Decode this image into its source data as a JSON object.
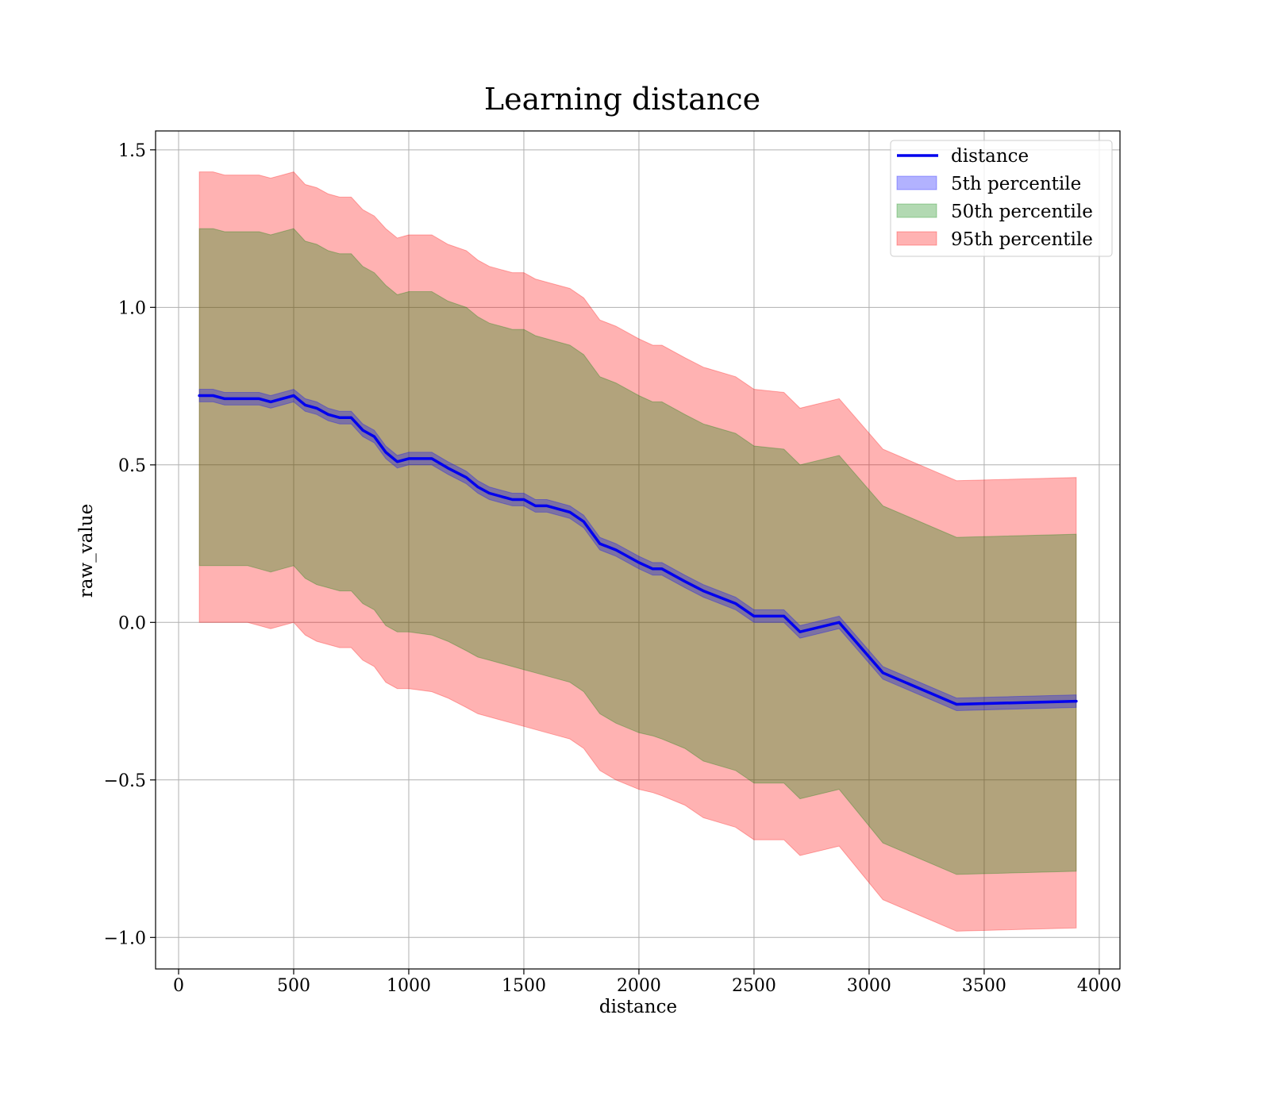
{
  "chart_data": {
    "type": "line",
    "title": "Learning distance",
    "xlabel": "distance",
    "ylabel": "raw_value",
    "xlim": [
      -100,
      4090
    ],
    "ylim": [
      -1.1,
      1.56
    ],
    "xticks": [
      0,
      500,
      1000,
      1500,
      2000,
      2500,
      3000,
      3500,
      4000
    ],
    "xtick_labels": [
      "0",
      "500",
      "1000",
      "1500",
      "2000",
      "2500",
      "3000",
      "3500",
      "4000"
    ],
    "yticks": [
      1.5,
      1.0,
      0.5,
      0.0,
      -0.5,
      -1.0
    ],
    "ytick_labels": [
      "1.5",
      "1.0",
      "0.5",
      "0.0",
      "−0.5",
      "−1.0"
    ],
    "grid": true,
    "legend_position": "top-right",
    "legend": [
      "distance",
      "5th percentile",
      "50th percentile",
      "95th percentile"
    ],
    "colors": {
      "line": "#0000ee",
      "band_5th": "#0000ff",
      "band_50th": "#008000",
      "band_95th": "#ff0000",
      "grid": "#b0b0b0"
    },
    "x": [
      90,
      150,
      200,
      250,
      300,
      350,
      400,
      450,
      500,
      550,
      600,
      650,
      700,
      750,
      800,
      850,
      900,
      950,
      1000,
      1100,
      1170,
      1250,
      1300,
      1350,
      1400,
      1450,
      1500,
      1550,
      1600,
      1700,
      1760,
      1830,
      1900,
      2000,
      2060,
      2100,
      2200,
      2280,
      2420,
      2500,
      2630,
      2700,
      2870,
      3060,
      3380,
      3900
    ],
    "series": [
      {
        "name": "distance",
        "values": [
          0.72,
          0.72,
          0.71,
          0.71,
          0.71,
          0.71,
          0.7,
          0.71,
          0.72,
          0.69,
          0.68,
          0.66,
          0.65,
          0.65,
          0.61,
          0.59,
          0.54,
          0.51,
          0.52,
          0.52,
          0.49,
          0.46,
          0.43,
          0.41,
          0.4,
          0.39,
          0.39,
          0.37,
          0.37,
          0.35,
          0.32,
          0.25,
          0.23,
          0.19,
          0.17,
          0.17,
          0.13,
          0.1,
          0.06,
          0.02,
          0.02,
          -0.03,
          0.0,
          -0.16,
          -0.26,
          -0.25
        ]
      },
      {
        "name": "5th percentile",
        "lower": [
          0.7,
          0.7,
          0.69,
          0.69,
          0.69,
          0.69,
          0.68,
          0.69,
          0.7,
          0.67,
          0.66,
          0.64,
          0.63,
          0.63,
          0.59,
          0.57,
          0.52,
          0.49,
          0.5,
          0.5,
          0.47,
          0.44,
          0.41,
          0.39,
          0.38,
          0.37,
          0.37,
          0.35,
          0.35,
          0.33,
          0.3,
          0.23,
          0.21,
          0.17,
          0.15,
          0.15,
          0.11,
          0.08,
          0.04,
          0.0,
          0.0,
          -0.05,
          -0.02,
          -0.18,
          -0.28,
          -0.27
        ],
        "upper": [
          0.74,
          0.74,
          0.73,
          0.73,
          0.73,
          0.73,
          0.72,
          0.73,
          0.74,
          0.71,
          0.7,
          0.68,
          0.67,
          0.67,
          0.63,
          0.61,
          0.56,
          0.53,
          0.54,
          0.54,
          0.51,
          0.48,
          0.45,
          0.43,
          0.42,
          0.41,
          0.41,
          0.39,
          0.39,
          0.37,
          0.34,
          0.27,
          0.25,
          0.21,
          0.19,
          0.19,
          0.15,
          0.12,
          0.08,
          0.04,
          0.04,
          -0.01,
          0.02,
          -0.14,
          -0.24,
          -0.23
        ]
      },
      {
        "name": "50th percentile",
        "lower": [
          0.18,
          0.18,
          0.18,
          0.18,
          0.18,
          0.17,
          0.16,
          0.17,
          0.18,
          0.14,
          0.12,
          0.11,
          0.1,
          0.1,
          0.06,
          0.04,
          -0.01,
          -0.03,
          -0.03,
          -0.04,
          -0.06,
          -0.09,
          -0.11,
          -0.12,
          -0.13,
          -0.14,
          -0.15,
          -0.16,
          -0.17,
          -0.19,
          -0.22,
          -0.29,
          -0.32,
          -0.35,
          -0.36,
          -0.37,
          -0.4,
          -0.44,
          -0.47,
          -0.51,
          -0.51,
          -0.56,
          -0.53,
          -0.7,
          -0.8,
          -0.79
        ],
        "upper": [
          1.25,
          1.25,
          1.24,
          1.24,
          1.24,
          1.24,
          1.23,
          1.24,
          1.25,
          1.21,
          1.2,
          1.18,
          1.17,
          1.17,
          1.13,
          1.11,
          1.07,
          1.04,
          1.05,
          1.05,
          1.02,
          1.0,
          0.97,
          0.95,
          0.94,
          0.93,
          0.93,
          0.91,
          0.9,
          0.88,
          0.85,
          0.78,
          0.76,
          0.72,
          0.7,
          0.7,
          0.66,
          0.63,
          0.6,
          0.56,
          0.55,
          0.5,
          0.53,
          0.37,
          0.27,
          0.28
        ]
      },
      {
        "name": "95th percentile",
        "lower": [
          0.0,
          0.0,
          0.0,
          0.0,
          0.0,
          -0.01,
          -0.02,
          -0.01,
          0.0,
          -0.04,
          -0.06,
          -0.07,
          -0.08,
          -0.08,
          -0.12,
          -0.14,
          -0.19,
          -0.21,
          -0.21,
          -0.22,
          -0.24,
          -0.27,
          -0.29,
          -0.3,
          -0.31,
          -0.32,
          -0.33,
          -0.34,
          -0.35,
          -0.37,
          -0.4,
          -0.47,
          -0.5,
          -0.53,
          -0.54,
          -0.55,
          -0.58,
          -0.62,
          -0.65,
          -0.69,
          -0.69,
          -0.74,
          -0.71,
          -0.88,
          -0.98,
          -0.97
        ],
        "upper": [
          1.43,
          1.43,
          1.42,
          1.42,
          1.42,
          1.42,
          1.41,
          1.42,
          1.43,
          1.39,
          1.38,
          1.36,
          1.35,
          1.35,
          1.31,
          1.29,
          1.25,
          1.22,
          1.23,
          1.23,
          1.2,
          1.18,
          1.15,
          1.13,
          1.12,
          1.11,
          1.11,
          1.09,
          1.08,
          1.06,
          1.03,
          0.96,
          0.94,
          0.9,
          0.88,
          0.88,
          0.84,
          0.81,
          0.78,
          0.74,
          0.73,
          0.68,
          0.71,
          0.55,
          0.45,
          0.46
        ]
      }
    ]
  }
}
